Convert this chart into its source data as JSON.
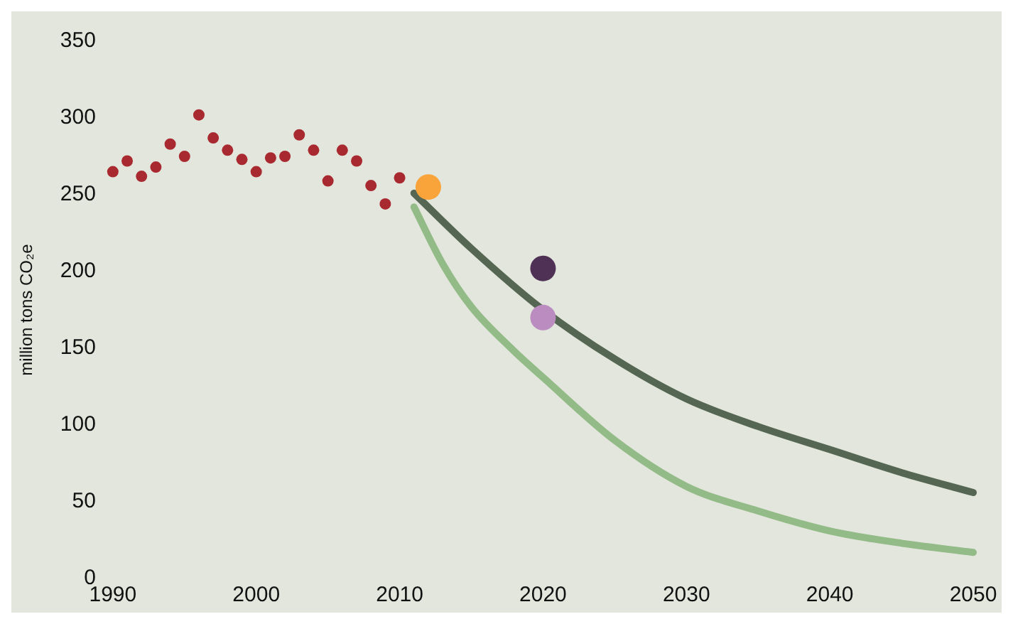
{
  "chart_data": {
    "type": "scatter",
    "ylabel": "million tons CO₂e",
    "xlim": [
      1990,
      2050
    ],
    "xticks": [
      1990,
      2000,
      2010,
      2020,
      2030,
      2040,
      2050
    ],
    "ylim": [
      0,
      350
    ],
    "yticks": [
      0,
      50,
      100,
      150,
      200,
      250,
      300,
      350
    ],
    "grid": false,
    "legend": false,
    "series": [
      {
        "type": "scatter",
        "marker": "circle",
        "color": "#a8292f",
        "x": [
          1990,
          1991,
          1992,
          1993,
          1994,
          1995,
          1996,
          1997,
          1998,
          1999,
          2000,
          2001,
          2002,
          2003,
          2004,
          2005,
          2006,
          2007,
          2008,
          2009,
          2010
        ],
        "values": [
          265,
          272,
          262,
          268,
          283,
          275,
          302,
          287,
          279,
          273,
          265,
          274,
          275,
          289,
          279,
          259,
          279,
          272,
          256,
          244,
          261
        ]
      },
      {
        "type": "line",
        "marker": "none",
        "color": "#556752",
        "x": [
          2011,
          2015,
          2020,
          2025,
          2030,
          2035,
          2040,
          2045,
          2050
        ],
        "values": [
          251,
          215,
          175,
          143,
          117,
          99,
          84,
          69,
          56
        ]
      },
      {
        "type": "line",
        "marker": "none",
        "color": "#93bb87",
        "x": [
          2011,
          2013,
          2015,
          2018,
          2020,
          2025,
          2030,
          2035,
          2040,
          2045,
          2050
        ],
        "values": [
          242,
          205,
          177,
          148,
          131,
          90,
          60,
          44,
          31,
          23,
          17
        ]
      },
      {
        "type": "scatter",
        "marker": "circle",
        "color": "#f9a43a",
        "x": [
          2012
        ],
        "values": [
          255
        ]
      },
      {
        "type": "scatter",
        "marker": "circle",
        "color": "#4f3155",
        "x": [
          2020
        ],
        "values": [
          202
        ]
      },
      {
        "type": "scatter",
        "marker": "circle",
        "color": "#bb8cc0",
        "x": [
          2020
        ],
        "values": [
          170
        ]
      }
    ]
  }
}
